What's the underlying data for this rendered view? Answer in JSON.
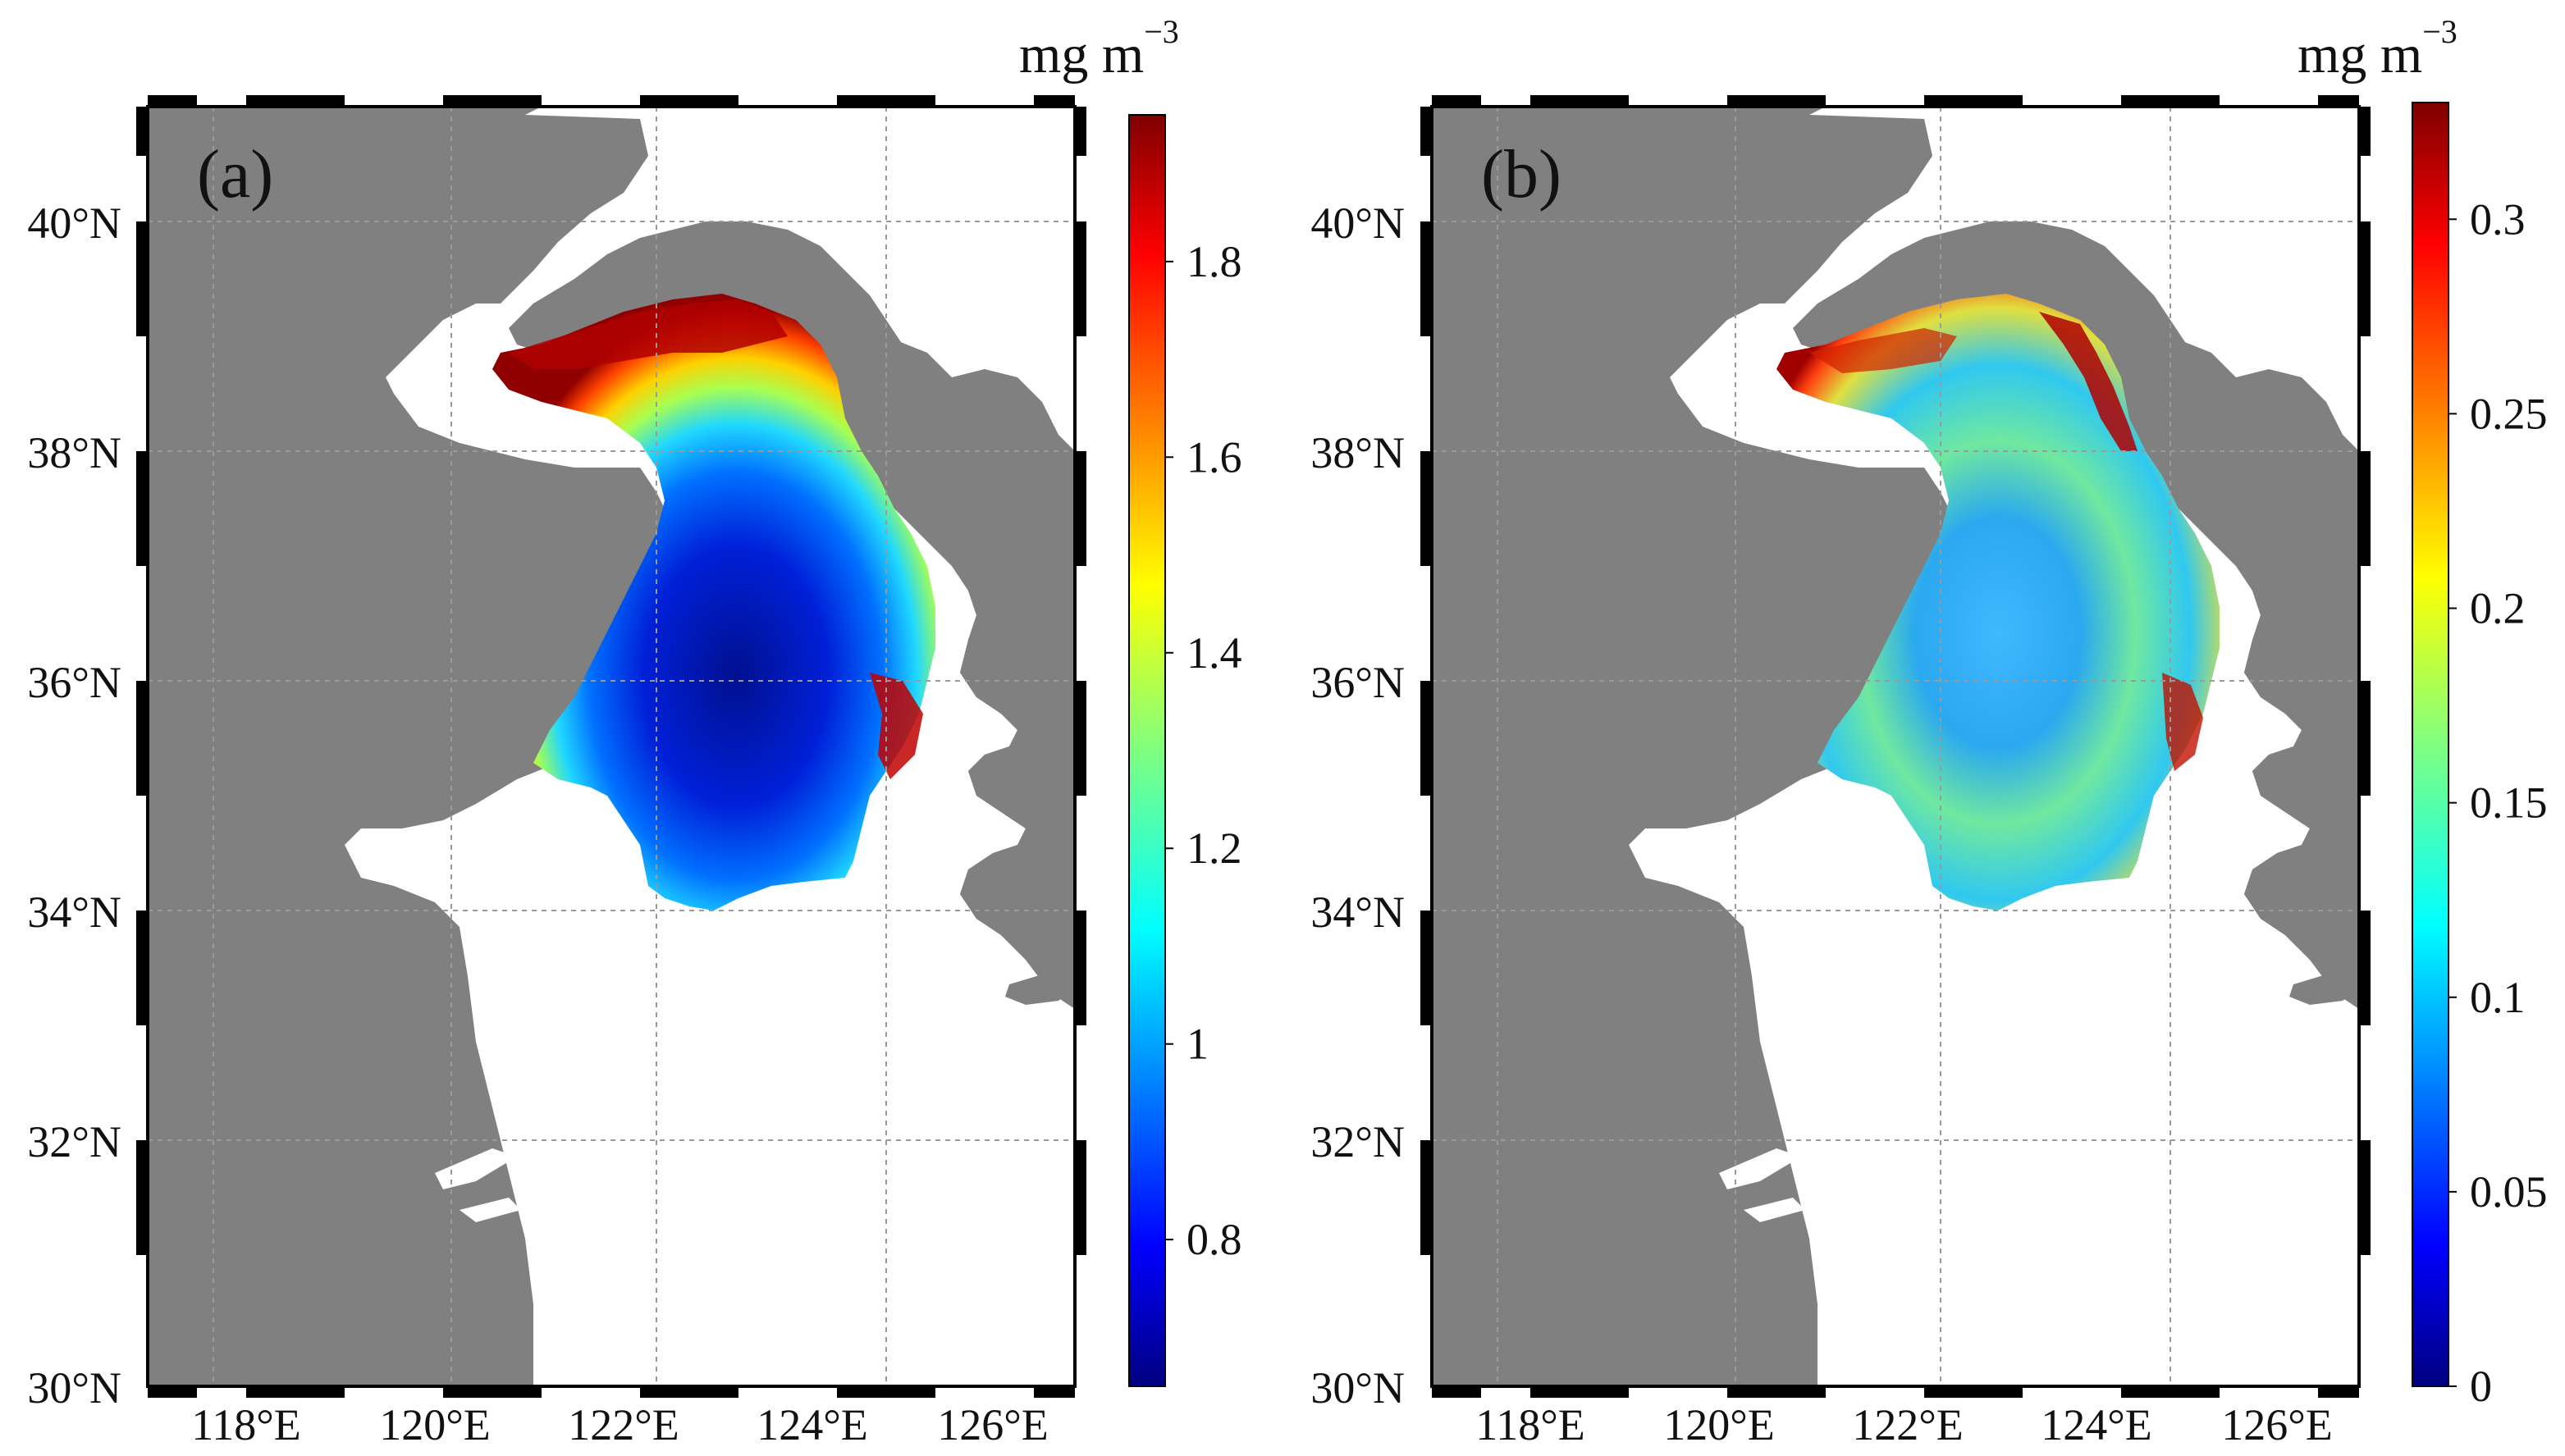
{
  "map": {
    "lat_labels": [
      "40°N",
      "38°N",
      "36°N",
      "34°N",
      "32°N",
      "30°N"
    ],
    "lon_labels": [
      "118°E",
      "120°E",
      "122°E",
      "124°E",
      "126°E"
    ],
    "land_color": "#808080",
    "sea_color": "#ffffff"
  },
  "panels": [
    {
      "label": "(a)",
      "unit": "mg m",
      "unit_exponent": "−3",
      "colorbar_ticks": [
        "1.8",
        "1.6",
        "1.4",
        "1.2",
        "1",
        "0.8"
      ],
      "colorbar_tick_values": [
        1.8,
        1.6,
        1.4,
        1.2,
        1.0,
        0.8
      ],
      "colorbar_range": [
        0.65,
        1.95
      ],
      "colormap": "jet"
    },
    {
      "label": "(b)",
      "unit": "mg m",
      "unit_exponent": "−3",
      "colorbar_ticks": [
        "0.3",
        "0.25",
        "0.2",
        "0.15",
        "0.1",
        "0.05",
        "0"
      ],
      "colorbar_tick_values": [
        0.3,
        0.25,
        0.2,
        0.15,
        0.1,
        0.05,
        0.0
      ],
      "colorbar_range": [
        0.0,
        0.33
      ],
      "colormap": "jet"
    }
  ],
  "colors": {
    "jet": [
      "#00007f",
      "#0000ff",
      "#007fff",
      "#00ffff",
      "#7fff7f",
      "#ffff00",
      "#ff7f00",
      "#ff0000",
      "#7f0000"
    ]
  }
}
